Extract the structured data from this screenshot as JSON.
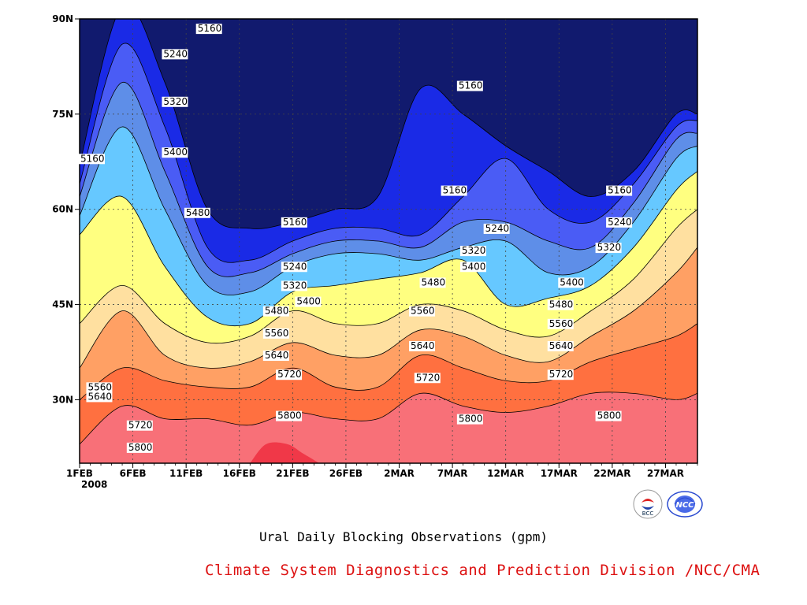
{
  "chart_data": {
    "type": "contour-filled",
    "x_ticks": [
      "1FEB",
      "6FEB",
      "11FEB",
      "16FEB",
      "21FEB",
      "26FEB",
      "2MAR",
      "7MAR",
      "12MAR",
      "17MAR",
      "22MAR",
      "27MAR"
    ],
    "x_year": "2008",
    "y_ticks": [
      "30N",
      "45N",
      "60N",
      "75N",
      "90N"
    ],
    "y_tick_values": [
      30,
      45,
      60,
      75,
      90
    ],
    "y_range": [
      20,
      90
    ],
    "x_range_days": [
      0,
      58
    ],
    "levels": [
      5160,
      5240,
      5320,
      5400,
      5480,
      5560,
      5640,
      5720,
      5800
    ],
    "colors": [
      "#111a6e",
      "#1a2ae6",
      "#4a5cf5",
      "#5e8ee8",
      "#66c8ff",
      "#ffff80",
      "#ffe0a0",
      "#ffa064",
      "#ff7040",
      "#f87078",
      "#f03848"
    ],
    "isolines_lat_by_day": {
      "days": [
        0,
        4,
        8,
        12,
        16,
        20,
        24,
        28,
        32,
        36,
        40,
        44,
        48,
        52,
        56,
        58
      ],
      "5160": [
        67,
        92,
        80,
        60,
        57,
        58,
        60,
        62,
        79,
        75,
        70,
        66,
        62,
        66,
        75,
        75
      ],
      "5240": [
        64,
        86,
        73,
        54,
        52,
        55,
        57,
        57,
        56,
        62,
        68,
        60,
        58,
        64,
        73,
        74
      ],
      "5320": [
        62,
        80,
        66,
        51,
        50,
        53,
        55,
        55,
        54,
        58,
        58,
        55,
        54,
        61,
        71,
        72
      ],
      "5400": [
        59,
        73,
        60,
        48,
        47,
        51,
        53,
        53,
        52,
        54,
        55,
        50,
        51,
        58,
        68,
        70
      ],
      "5480": [
        56,
        62,
        51,
        43,
        42,
        47,
        48,
        49,
        50,
        52,
        45,
        46,
        48,
        54,
        63,
        66
      ],
      "5560": [
        42,
        48,
        42,
        39,
        40,
        44,
        42,
        42,
        45,
        44,
        41,
        40,
        44,
        49,
        57,
        60
      ],
      "5640": [
        35,
        44,
        37,
        35,
        36,
        39,
        37,
        37,
        41,
        40,
        37,
        36,
        40,
        44,
        50,
        54
      ],
      "5720": [
        30,
        35,
        33,
        32,
        32,
        35,
        32,
        32,
        37,
        35,
        33,
        33,
        36,
        38,
        40,
        42
      ],
      "5800": [
        23,
        29,
        27,
        27,
        26,
        28,
        27,
        27,
        31,
        29,
        28,
        29,
        31,
        31,
        30,
        31
      ]
    },
    "contour_labels": [
      {
        "text": "5160",
        "day": 0.0,
        "lat": 67.5
      },
      {
        "text": "5240",
        "day": 7.8,
        "lat": 84
      },
      {
        "text": "5320",
        "day": 7.8,
        "lat": 76.5
      },
      {
        "text": "5400",
        "day": 7.8,
        "lat": 68.5
      },
      {
        "text": "5480",
        "day": 9.9,
        "lat": 59
      },
      {
        "text": "5160",
        "day": 11,
        "lat": 88
      },
      {
        "text": "5160",
        "day": 19,
        "lat": 57.5
      },
      {
        "text": "5240",
        "day": 19,
        "lat": 50.5
      },
      {
        "text": "5320",
        "day": 19,
        "lat": 47.5
      },
      {
        "text": "5400",
        "day": 20.3,
        "lat": 45
      },
      {
        "text": "5480",
        "day": 17.3,
        "lat": 43.5
      },
      {
        "text": "5560",
        "day": 17.3,
        "lat": 40
      },
      {
        "text": "5640",
        "day": 17.3,
        "lat": 36.5
      },
      {
        "text": "5720",
        "day": 18.5,
        "lat": 33.5
      },
      {
        "text": "5800",
        "day": 18.5,
        "lat": 27
      },
      {
        "text": "5160",
        "day": 34,
        "lat": 62.5
      },
      {
        "text": "5480",
        "day": 32,
        "lat": 48
      },
      {
        "text": "5560",
        "day": 31,
        "lat": 43.5
      },
      {
        "text": "5640",
        "day": 31,
        "lat": 38
      },
      {
        "text": "5720",
        "day": 31.5,
        "lat": 33
      },
      {
        "text": "5800",
        "day": 35.5,
        "lat": 26.5
      },
      {
        "text": "5160",
        "day": 35.5,
        "lat": 79
      },
      {
        "text": "5240",
        "day": 38,
        "lat": 56.5
      },
      {
        "text": "5320",
        "day": 35.8,
        "lat": 53
      },
      {
        "text": "5400",
        "day": 35.8,
        "lat": 50.5
      },
      {
        "text": "5400",
        "day": 45,
        "lat": 48
      },
      {
        "text": "5480",
        "day": 44,
        "lat": 44.5
      },
      {
        "text": "5560",
        "day": 44,
        "lat": 41.5
      },
      {
        "text": "5640",
        "day": 44,
        "lat": 38
      },
      {
        "text": "5720",
        "day": 44,
        "lat": 33.5
      },
      {
        "text": "5800",
        "day": 48.5,
        "lat": 27
      },
      {
        "text": "5160",
        "day": 49.5,
        "lat": 62.5
      },
      {
        "text": "5240",
        "day": 49.5,
        "lat": 57.5
      },
      {
        "text": "5320",
        "day": 48.5,
        "lat": 53.5
      },
      {
        "text": "5560",
        "day": 0.7,
        "lat": 31.5
      },
      {
        "text": "5640",
        "day": 0.7,
        "lat": 30
      },
      {
        "text": "5720",
        "day": 4.5,
        "lat": 25.5
      },
      {
        "text": "5800",
        "day": 4.5,
        "lat": 22
      }
    ]
  },
  "subtitle": "Ural Daily Blocking Observations (gpm)",
  "credit": "Climate System Diagnostics and Prediction Division /NCC/CMA",
  "logos": {
    "left": "BCC",
    "right": "NCC"
  }
}
